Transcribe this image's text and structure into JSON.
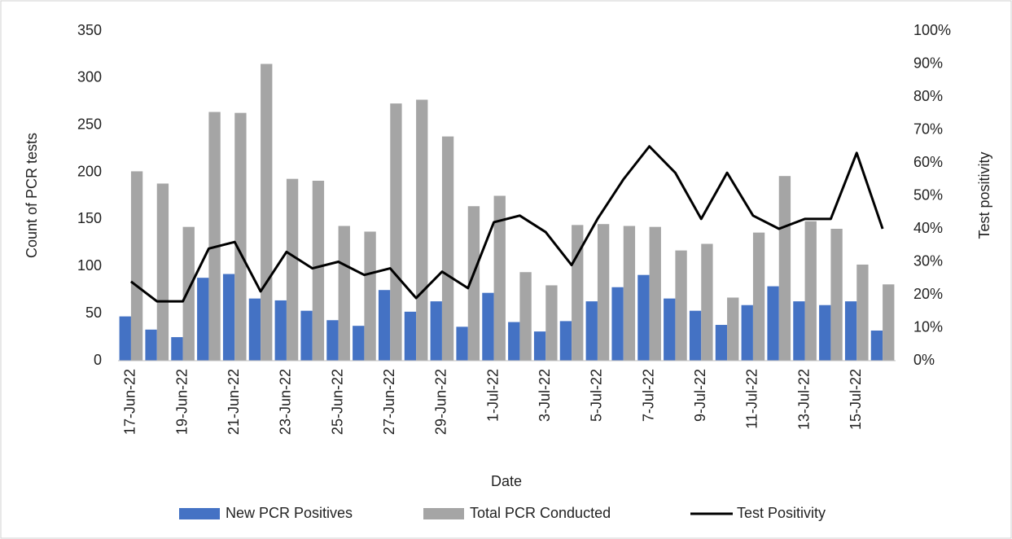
{
  "chart_data": {
    "type": "bar-line",
    "x_label": "Date",
    "y_label": "Count of PCR tests",
    "y2_label": "Test positivity",
    "categories": [
      "17-Jun-22",
      null,
      "19-Jun-22",
      null,
      "21-Jun-22",
      null,
      "23-Jun-22",
      null,
      "25-Jun-22",
      null,
      "27-Jun-22",
      null,
      "29-Jun-22",
      null,
      "1-Jul-22",
      null,
      "3-Jul-22",
      null,
      "5-Jul-22",
      null,
      "7-Jul-22",
      null,
      "9-Jul-22",
      null,
      "11-Jul-22",
      null,
      "13-Jul-22",
      null,
      "15-Jul-22",
      null
    ],
    "series": [
      {
        "name": "New PCR Positives",
        "type": "bar",
        "color": "#4472c4",
        "values": [
          47,
          33,
          25,
          88,
          92,
          66,
          64,
          53,
          43,
          37,
          75,
          52,
          63,
          36,
          72,
          41,
          31,
          42,
          63,
          78,
          91,
          66,
          53,
          38,
          59,
          79,
          63,
          59,
          63,
          32
        ]
      },
      {
        "name": "Total PCR Conducted",
        "type": "bar",
        "color": "#a5a5a5",
        "values": [
          201,
          188,
          142,
          264,
          263,
          315,
          193,
          191,
          143,
          137,
          273,
          277,
          238,
          164,
          175,
          94,
          80,
          144,
          145,
          143,
          142,
          117,
          124,
          67,
          136,
          196,
          148,
          140,
          102,
          81
        ]
      },
      {
        "name": "Test Positivity",
        "type": "line",
        "axis": "y2",
        "color": "#000000",
        "values": [
          24,
          18,
          18,
          34,
          36,
          21,
          33,
          28,
          30,
          26,
          28,
          19,
          27,
          22,
          42,
          44,
          39,
          29,
          43,
          55,
          65,
          57,
          43,
          57,
          44,
          40,
          43,
          43,
          63,
          40
        ]
      }
    ],
    "ylim": [
      0,
      350
    ],
    "yticks": [
      0,
      50,
      100,
      150,
      200,
      250,
      300,
      350
    ],
    "y2lim": [
      0,
      100
    ],
    "y2ticks": [
      {
        "value": 0,
        "label": "0%"
      },
      {
        "value": 10,
        "label": "10%"
      },
      {
        "value": 20,
        "label": "20%"
      },
      {
        "value": 30,
        "label": "30%"
      },
      {
        "value": 40,
        "label": "40%"
      },
      {
        "value": 50,
        "label": "50%"
      },
      {
        "value": 60,
        "label": "60%"
      },
      {
        "value": 70,
        "label": "70%"
      },
      {
        "value": 80,
        "label": "80%"
      },
      {
        "value": 90,
        "label": "90%"
      },
      {
        "value": 100,
        "label": "100%"
      }
    ],
    "legend": "bottom"
  }
}
